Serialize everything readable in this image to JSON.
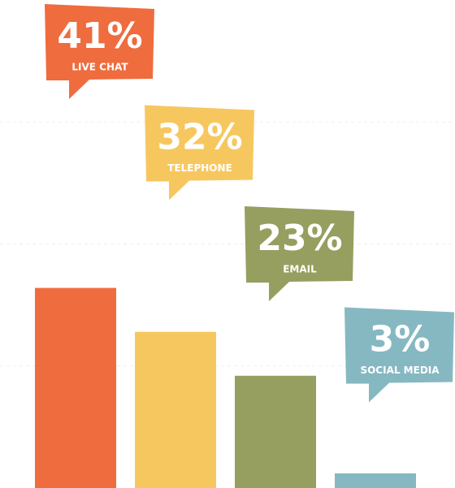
{
  "chart_data": {
    "type": "bar",
    "categories": [
      "LIVE CHAT",
      "TELEPHONE",
      "EMAIL",
      "SOCIAL MEDIA"
    ],
    "series": [
      {
        "values": [
          41,
          32,
          23,
          3
        ],
        "value_labels": [
          "41%",
          "32%",
          "23%",
          "3%"
        ],
        "colors": [
          "#ef6c3e",
          "#f7c75f",
          "#969f5f",
          "#86b8c2"
        ]
      }
    ],
    "ylim": [
      0,
      100
    ],
    "yticks": [
      25,
      50,
      75
    ],
    "grid": true
  }
}
